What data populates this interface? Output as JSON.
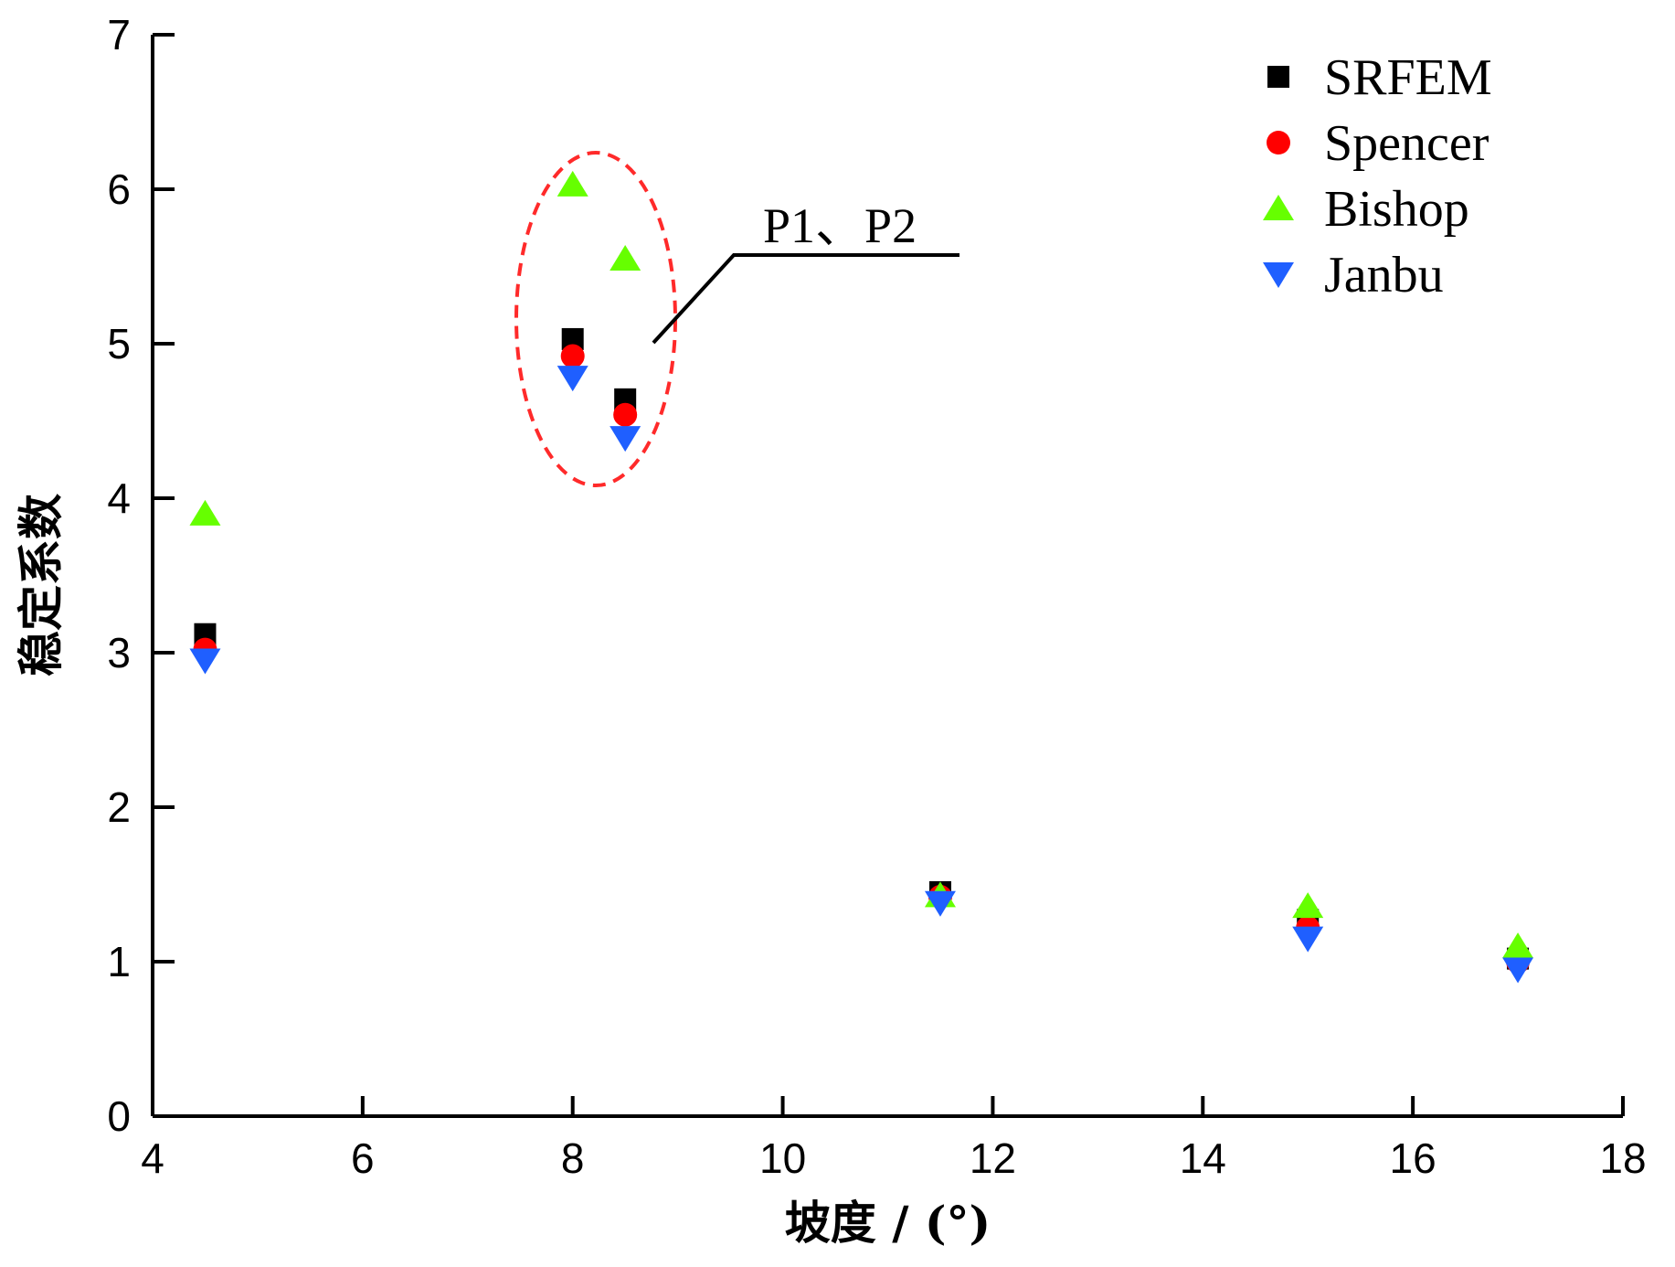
{
  "chart_data": {
    "type": "scatter",
    "xlabel": "坡度 / (°)",
    "ylabel": "稳定系数",
    "xlim": [
      4,
      18
    ],
    "ylim": [
      0,
      7
    ],
    "x_ticks": [
      4,
      6,
      8,
      10,
      12,
      14,
      16,
      18
    ],
    "y_ticks": [
      0,
      1,
      2,
      3,
      4,
      5,
      6,
      7
    ],
    "grid": false,
    "legend_position": "top-right",
    "x": [
      4.5,
      8.0,
      8.5,
      11.5,
      15.0,
      17.0
    ],
    "series": [
      {
        "name": "SRFEM",
        "marker": "square",
        "color": "#000000",
        "values": [
          3.12,
          5.03,
          4.64,
          1.45,
          1.27,
          1.02
        ]
      },
      {
        "name": "Spencer",
        "marker": "circle",
        "color": "#ff0000",
        "values": [
          3.02,
          4.92,
          4.54,
          1.42,
          1.22,
          1.0
        ]
      },
      {
        "name": "Bishop",
        "marker": "triangle-up",
        "color": "#66ff00",
        "values": [
          3.9,
          6.03,
          5.55,
          1.43,
          1.36,
          1.1
        ]
      },
      {
        "name": "Janbu",
        "marker": "triangle-down",
        "color": "#1f5fff",
        "values": [
          2.95,
          4.78,
          4.39,
          1.38,
          1.15,
          0.95
        ]
      }
    ],
    "annotations": [
      {
        "text": "P1、P2",
        "target_x": [
          8.0,
          8.5
        ]
      }
    ]
  }
}
